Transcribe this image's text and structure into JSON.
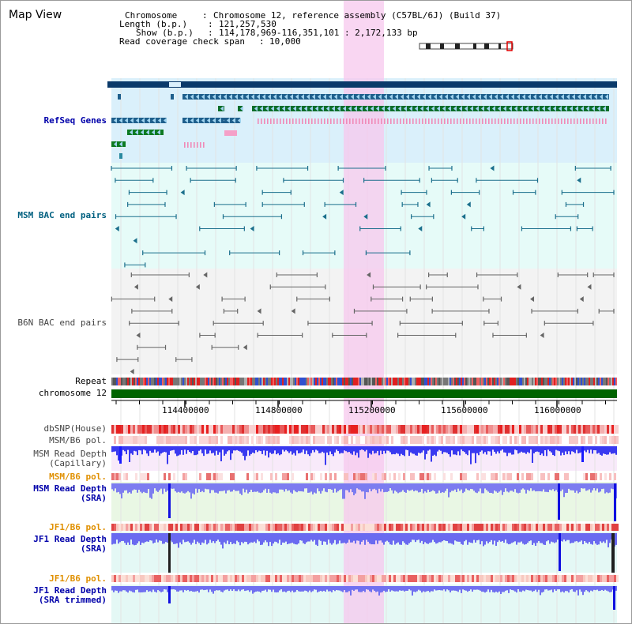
{
  "page": {
    "title": "Map View"
  },
  "info": {
    "chromosome_label": "Chromosome",
    "chromosome_value": "Chromosome 12, reference assembly (C57BL/6J) (Build 37)",
    "length_label": "Length (b.p.)",
    "length_value": "121,257,530",
    "show_label": "Show (b.p.)",
    "show_value": "114,178,969-116,351,101 : 2,172,133 bp",
    "coverage_label": "Read coverage check span",
    "coverage_value": "10,000",
    "sep": ":"
  },
  "tracks": {
    "refseq": "RefSeq Genes",
    "msm_bac": "MSM BAC end pairs",
    "b6n_bac": "B6N BAC end pairs",
    "repeat": "Repeat",
    "chromosome": "chromosome 12",
    "dbsnp": "dbSNP(House)",
    "msm_b6_pol_1": "MSM/B6 pol.",
    "msm_read_cap": "MSM Read Depth\n(Capillary)",
    "msm_b6_pol_2": "MSM/B6 pol.",
    "msm_read_sra": "MSM Read Depth\n(SRA)",
    "jf1_b6_pol_1": "JF1/B6 pol.",
    "jf1_read_sra": "JF1 Read Depth\n(SRA)",
    "jf1_b6_pol_2": "JF1/B6 pol.",
    "jf1_read_trim": "JF1 Read Depth\n(SRA trimmed)"
  },
  "axis": {
    "ticks": [
      "114400000",
      "114800000",
      "115200000",
      "115600000",
      "116000000"
    ]
  },
  "colors": {
    "refseq_label": "#0000aa",
    "msm_label": "#006080",
    "b6n_label": "#444444",
    "orange_label": "#e09000",
    "blue_label": "#0000aa",
    "highlight": "#f7c8ee",
    "chromosome_bar": "#006400"
  }
}
